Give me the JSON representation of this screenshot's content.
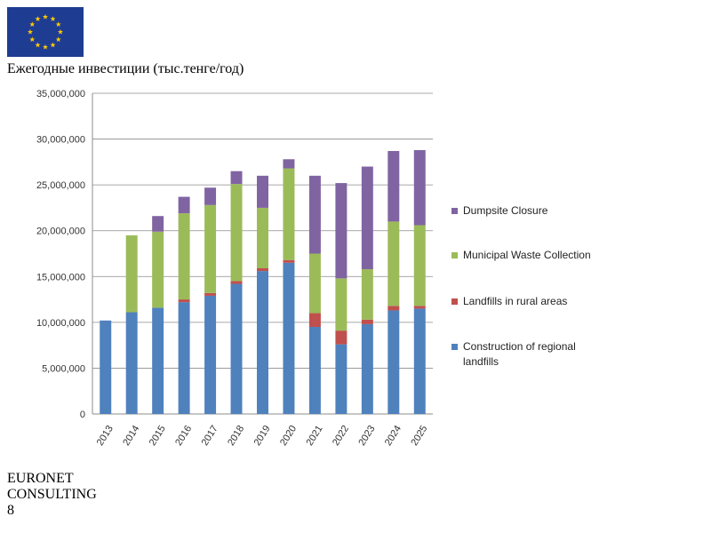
{
  "title": "Ежегодные инвестиции (тыс.тенге/год)",
  "page_number": "8",
  "logo": {
    "line1": "EURONET",
    "line2": "CONSULTING"
  },
  "colors": {
    "construction": "#4f81bd",
    "landfills": "#c0504d",
    "collection": "#9bbb59",
    "closure": "#8064a2",
    "title_bar": "#92adcc",
    "flag_blue": "#1f3c93",
    "flag_star": "#ffcc00"
  },
  "chart_data": {
    "type": "bar",
    "stacked": true,
    "categories": [
      "2013",
      "2014",
      "2015",
      "2016",
      "2017",
      "2018",
      "2019",
      "2020",
      "2021",
      "2022",
      "2023",
      "2024",
      "2025"
    ],
    "series": [
      {
        "name": "Construction of regional landfills",
        "color": "#4f81bd",
        "values": [
          10200000,
          11100000,
          11600000,
          12200000,
          12900000,
          14200000,
          15600000,
          16500000,
          9500000,
          7600000,
          9800000,
          11300000,
          11500000
        ]
      },
      {
        "name": "Landfills in rural areas",
        "color": "#c0504d",
        "values": [
          0,
          0,
          0,
          300000,
          300000,
          300000,
          300000,
          300000,
          1500000,
          1500000,
          500000,
          500000,
          300000
        ]
      },
      {
        "name": "Municipal Waste Collection",
        "color": "#9bbb59",
        "values": [
          0,
          8400000,
          8300000,
          9400000,
          9600000,
          10600000,
          6600000,
          10000000,
          6500000,
          5700000,
          5500000,
          9200000,
          8800000
        ]
      },
      {
        "name": "Dumpsite Closure",
        "color": "#8064a2",
        "values": [
          0,
          0,
          1700000,
          1800000,
          1900000,
          1400000,
          3500000,
          1000000,
          8500000,
          10400000,
          11200000,
          7700000,
          8200000
        ]
      }
    ],
    "ylim": [
      0,
      35000000
    ],
    "yticks": [
      "0",
      "5,000,000",
      "10,000,000",
      "15,000,000",
      "20,000,000",
      "25,000,000",
      "30,000,000",
      "35,000,000"
    ],
    "ytick_values": [
      0,
      5000000,
      10000000,
      15000000,
      20000000,
      25000000,
      30000000,
      35000000
    ],
    "grid": true,
    "legend_position": "right",
    "legend_order": [
      3,
      2,
      1,
      0
    ]
  }
}
